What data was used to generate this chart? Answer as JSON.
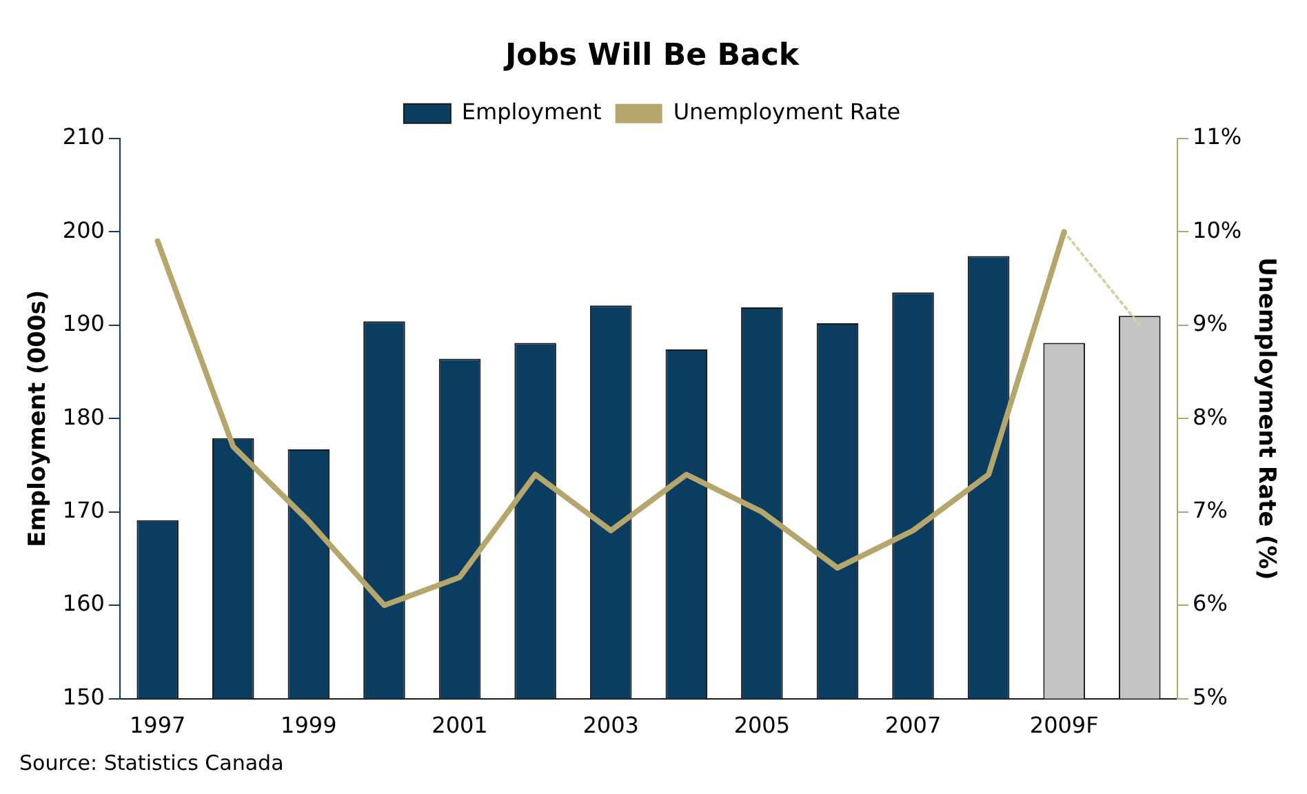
{
  "chart_data": {
    "type": "bar",
    "title": "Jobs Will Be Back",
    "ylabel": "Employment (000s)",
    "y2label": "Unemployment Rate (%)",
    "categories": [
      "1997",
      null,
      "1999",
      null,
      "2001",
      null,
      "2003",
      null,
      "2005",
      null,
      "2007",
      null,
      "2009F",
      null
    ],
    "series": [
      {
        "name": "Employment",
        "colors": [
          "#0b3d61",
          "#0b3d61",
          "#0b3d61",
          "#0b3d61",
          "#0b3d61",
          "#0b3d61",
          "#0b3d61",
          "#0b3d61",
          "#0b3d61",
          "#0b3d61",
          "#0b3d61",
          "#0b3d61",
          "#c4c4c4",
          "#c4c4c4"
        ],
        "values": [
          169.1,
          177.9,
          176.7,
          190.4,
          186.4,
          188.1,
          192.1,
          187.4,
          191.9,
          190.2,
          193.5,
          197.4,
          188.1,
          191.0
        ]
      },
      {
        "name": "Unemployment Rate",
        "type": "line",
        "axis": "y2",
        "color": "#b5a66c",
        "line_style": "solid",
        "values": [
          9.9,
          7.7,
          6.9,
          6.0,
          6.3,
          7.4,
          6.8,
          7.4,
          7.0,
          6.4,
          6.8,
          7.4,
          10.0,
          null
        ]
      },
      {
        "type": "line",
        "axis": "y2",
        "color": "#d8cfa6",
        "line_style": "dotted",
        "values": [
          null,
          null,
          null,
          null,
          null,
          null,
          null,
          null,
          null,
          null,
          null,
          null,
          10.0,
          9.0
        ]
      }
    ],
    "ylim": [
      150,
      210
    ],
    "yticks": [
      150,
      160,
      170,
      180,
      190,
      200,
      210
    ],
    "y2lim": [
      5,
      11
    ],
    "y2ticks": [
      {
        "value": 5,
        "label": "5%"
      },
      {
        "value": 6,
        "label": "6%"
      },
      {
        "value": 7,
        "label": "7%"
      },
      {
        "value": 8,
        "label": "8%"
      },
      {
        "value": 9,
        "label": "9%"
      },
      {
        "value": 10,
        "label": "10%"
      },
      {
        "value": 11,
        "label": "11%"
      }
    ],
    "grid": false,
    "legend": "top",
    "marker": "none",
    "annotations": [
      "Source: Statistics Canada"
    ]
  }
}
